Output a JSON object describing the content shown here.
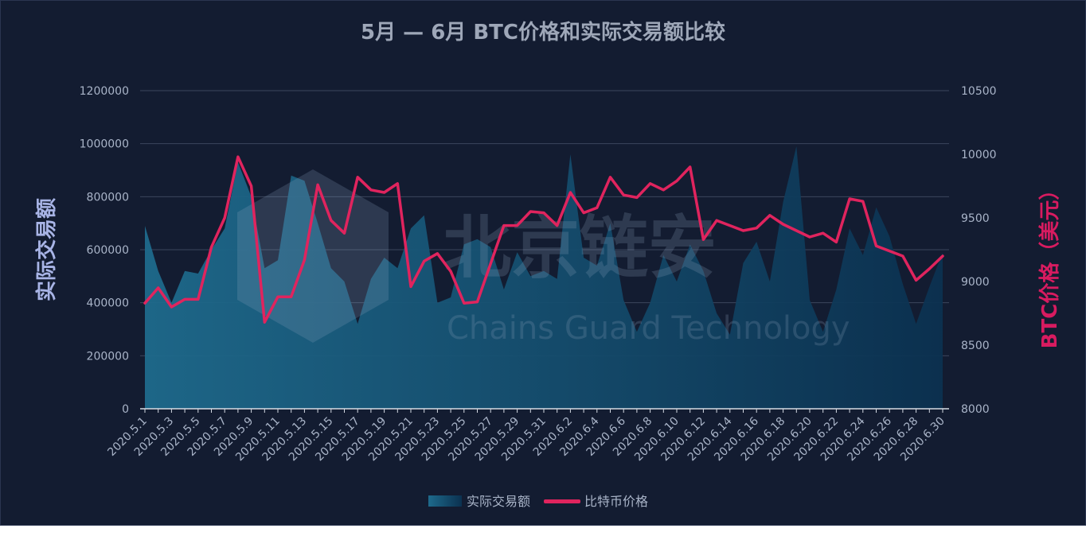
{
  "chart_data": {
    "type": "area+line",
    "title": "5月 — 6月 BTC价格和实际交易额比较",
    "ylabel_left": "实际交易额",
    "ylabel_right": "BTC价格（美元）",
    "ylim_left": [
      0,
      1200000
    ],
    "ylim_right": [
      8000,
      10500
    ],
    "yticks_left": [
      "0",
      "200000",
      "400000",
      "600000",
      "800000",
      "1000000",
      "1200000"
    ],
    "yticks_right": [
      "8000",
      "8500",
      "9000",
      "9500",
      "10000",
      "10500"
    ],
    "grid": true,
    "legend_position": "bottom",
    "colors": {
      "area": "#1e5f80",
      "line": "#e0245e",
      "background": "#131c31"
    },
    "x": [
      "2020.5.1",
      "2020.5.2",
      "2020.5.3",
      "2020.5.4",
      "2020.5.5",
      "2020.5.6",
      "2020.5.7",
      "2020.5.8",
      "2020.5.9",
      "2020.5.10",
      "2020.5.11",
      "2020.5.12",
      "2020.5.13",
      "2020.5.14",
      "2020.5.15",
      "2020.5.16",
      "2020.5.17",
      "2020.5.18",
      "2020.5.19",
      "2020.5.20",
      "2020.5.21",
      "2020.5.22",
      "2020.5.23",
      "2020.5.24",
      "2020.5.25",
      "2020.5.26",
      "2020.5.27",
      "2020.5.28",
      "2020.5.29",
      "2020.5.30",
      "2020.5.31",
      "2020.6.1",
      "2020.6.2",
      "2020.6.3",
      "2020.6.4",
      "2020.6.5",
      "2020.6.6",
      "2020.6.7",
      "2020.6.8",
      "2020.6.9",
      "2020.6.10",
      "2020.6.11",
      "2020.6.12",
      "2020.6.13",
      "2020.6.14",
      "2020.6.15",
      "2020.6.16",
      "2020.6.17",
      "2020.6.18",
      "2020.6.19",
      "2020.6.20",
      "2020.6.21",
      "2020.6.22",
      "2020.6.23",
      "2020.6.24",
      "2020.6.25",
      "2020.6.26",
      "2020.6.27",
      "2020.6.28",
      "2020.6.29",
      "2020.6.30"
    ],
    "x_tick_labels": [
      "2020.5.1",
      "2020.5.3",
      "2020.5.5",
      "2020.5.7",
      "2020.5.9",
      "2020.5.11",
      "2020.5.13",
      "2020.5.15",
      "2020.5.17",
      "2020.5.19",
      "2020.5.21",
      "2020.5.23",
      "2020.5.25",
      "2020.5.27",
      "2020.5.29",
      "2020.5.31",
      "2020.6.2",
      "2020.6.4",
      "2020.6.6",
      "2020.6.8",
      "2020.6.10",
      "2020.6.12",
      "2020.6.14",
      "2020.6.16",
      "2020.6.18",
      "2020.6.20",
      "2020.6.22",
      "2020.6.24",
      "2020.6.26",
      "2020.6.28",
      "2020.6.30"
    ],
    "series": [
      {
        "name": "实际交易额",
        "type": "area",
        "axis": "left",
        "values": [
          690000,
          520000,
          400000,
          520000,
          510000,
          600000,
          680000,
          930000,
          800000,
          530000,
          560000,
          880000,
          860000,
          700000,
          530000,
          480000,
          320000,
          490000,
          570000,
          530000,
          680000,
          730000,
          400000,
          420000,
          620000,
          640000,
          610000,
          450000,
          590000,
          500000,
          520000,
          490000,
          960000,
          570000,
          540000,
          700000,
          410000,
          290000,
          400000,
          580000,
          480000,
          620000,
          520000,
          360000,
          280000,
          550000,
          630000,
          480000,
          780000,
          990000,
          410000,
          290000,
          450000,
          680000,
          580000,
          760000,
          650000,
          470000,
          320000,
          460000,
          590000
        ]
      },
      {
        "name": "比特币价格",
        "type": "line",
        "axis": "right",
        "values": [
          8830,
          8950,
          8800,
          8860,
          8860,
          9270,
          9500,
          9980,
          9750,
          8680,
          8880,
          8880,
          9170,
          9760,
          9480,
          9380,
          9820,
          9720,
          9700,
          9770,
          8960,
          9160,
          9220,
          9080,
          8830,
          8840,
          9140,
          9440,
          9440,
          9550,
          9540,
          9440,
          9700,
          9540,
          9580,
          9820,
          9680,
          9660,
          9770,
          9720,
          9790,
          9900,
          9330,
          9480,
          9440,
          9400,
          9420,
          9520,
          9450,
          9400,
          9350,
          9380,
          9310,
          9650,
          9630,
          9280,
          9240,
          9200,
          9010,
          9100,
          9200
        ]
      }
    ],
    "legend": [
      {
        "label": "实际交易额",
        "kind": "area"
      },
      {
        "label": "比特币价格",
        "kind": "line"
      }
    ]
  },
  "watermark": {
    "text_cn": "北京链安",
    "text_en": "Chains Guard Technology"
  }
}
